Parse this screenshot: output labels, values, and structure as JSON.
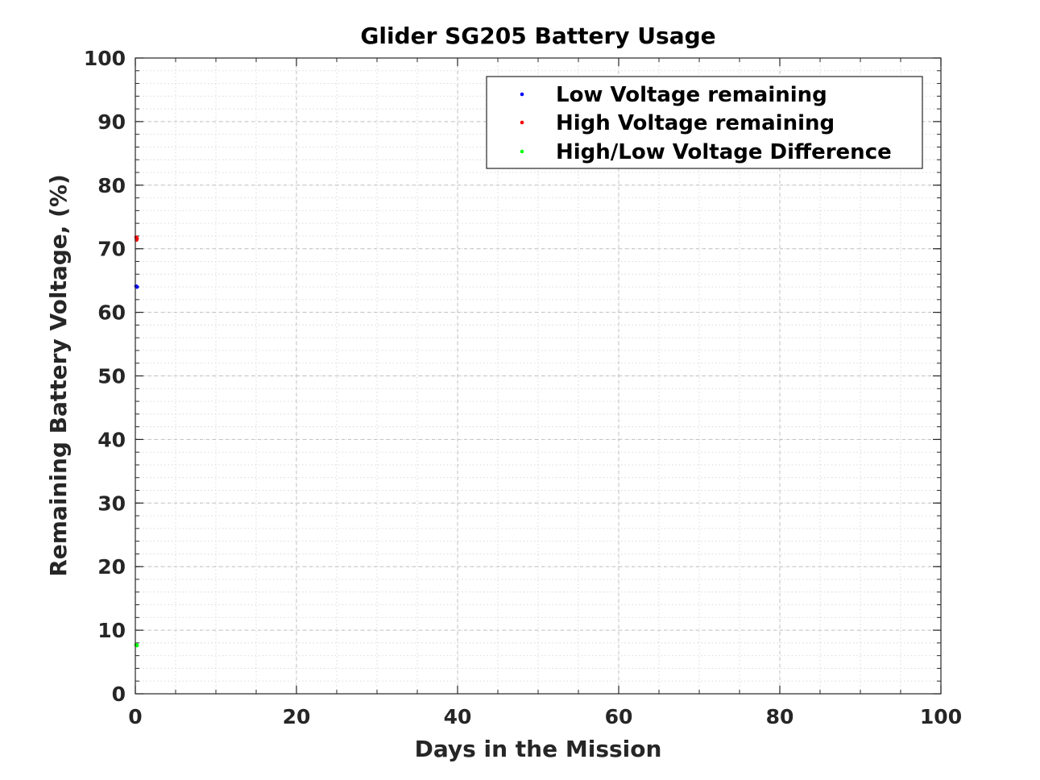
{
  "chart_data": {
    "type": "scatter",
    "title": "Glider SG205 Battery Usage",
    "xlabel": "Days in the Mission",
    "ylabel": "Remaining Battery Voltage, (%)",
    "xlim": [
      0,
      100
    ],
    "ylim": [
      0,
      100
    ],
    "xticks": [
      0,
      20,
      40,
      60,
      80,
      100
    ],
    "yticks": [
      0,
      10,
      20,
      30,
      40,
      50,
      60,
      70,
      80,
      90,
      100
    ],
    "grid": true,
    "minor_grid": true,
    "legend_position": "top-right",
    "series": [
      {
        "name": "Low Voltage remaining",
        "color": "#0000ff",
        "x": [
          0.1,
          0.2
        ],
        "y": [
          64.1,
          64.0
        ]
      },
      {
        "name": "High Voltage remaining",
        "color": "#ff0000",
        "x": [
          0.1,
          0.15,
          0.2
        ],
        "y": [
          71.8,
          71.4,
          71.6
        ]
      },
      {
        "name": "High/Low Voltage Difference",
        "color": "#00ff00",
        "x": [
          0.1,
          0.2
        ],
        "y": [
          7.7,
          7.6
        ]
      }
    ]
  }
}
